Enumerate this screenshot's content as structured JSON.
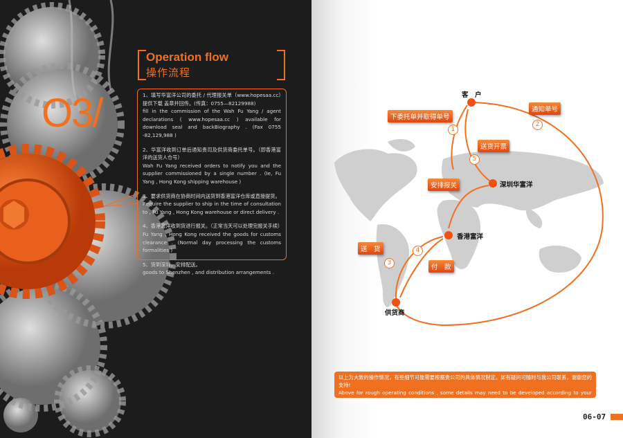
{
  "left_page": {
    "title_en": "Operation flow",
    "title_cn": "操作流程",
    "section_number": "O3/",
    "steps": [
      {
        "cn": "1、填写华富洋公司的委托 / 代理报关单（www.hopesaa.cc）提供下载  盖章并回传。(传真：0755—82129988)",
        "en": "fill in the commission of the Wah Fu Yang / agent declarations ( www.hopesaa.cc ) available for download seal and backBiography . (Fax 0755 -82,129,988 )"
      },
      {
        "cn": "2、华富洋收到订单后通知贵司及供货商委托单号。（即香港富洋的送货人仓号）",
        "en": "Wah Fu Yang received orders to notify you and the supplier commissioned by a single number . (Ie, Fu Yang , Hong Kong shipping warehouse )"
      },
      {
        "cn": "3、要求供货商在协商时间内送货到香港富洋仓库或直接提货。",
        "en": "Require the supplier to ship in the time of consultation to , Fu Yang , Hong Kong warehouse or direct delivery ."
      },
      {
        "cn": "4、香港富洋收到货进行报关。（正常当天可以处理完报关手续）",
        "en": "Fu Yang , Hong Kong received the goods for customs clearance . (Normal day processing the customs formalities )"
      },
      {
        "cn": "5、货到深圳，安排配送。",
        "en": "goods to Shenzhen , and distribution arrangements ."
      }
    ]
  },
  "map": {
    "nodes": {
      "customer": "客　户",
      "shenzhen": "深圳华富洋",
      "hongkong": "香港富洋",
      "supplier": "供货商"
    },
    "tags": {
      "order": "下委托单并取得单号",
      "notify": "通知单号",
      "invoice": "送货开票",
      "customs": "安排报关",
      "deliver": "送　货",
      "pay": "付　款"
    },
    "step_numbers": [
      "1",
      "2",
      "3",
      "4",
      "5"
    ]
  },
  "note": {
    "cn": "以上为大致的操作情况，有些细节可能需要根据贵公司的具体情况制定。如有疑问可随时与我公司联系，谢谢您的支持!",
    "en": "Above for rough operating conditions , some details may need to be developed according to your company's specific circumstances . If in doubt can always contact me , thank you for your support !"
  },
  "page_number": "06-07",
  "colors": {
    "accent": "#f07020",
    "left_bg": "#1c1c1c"
  }
}
